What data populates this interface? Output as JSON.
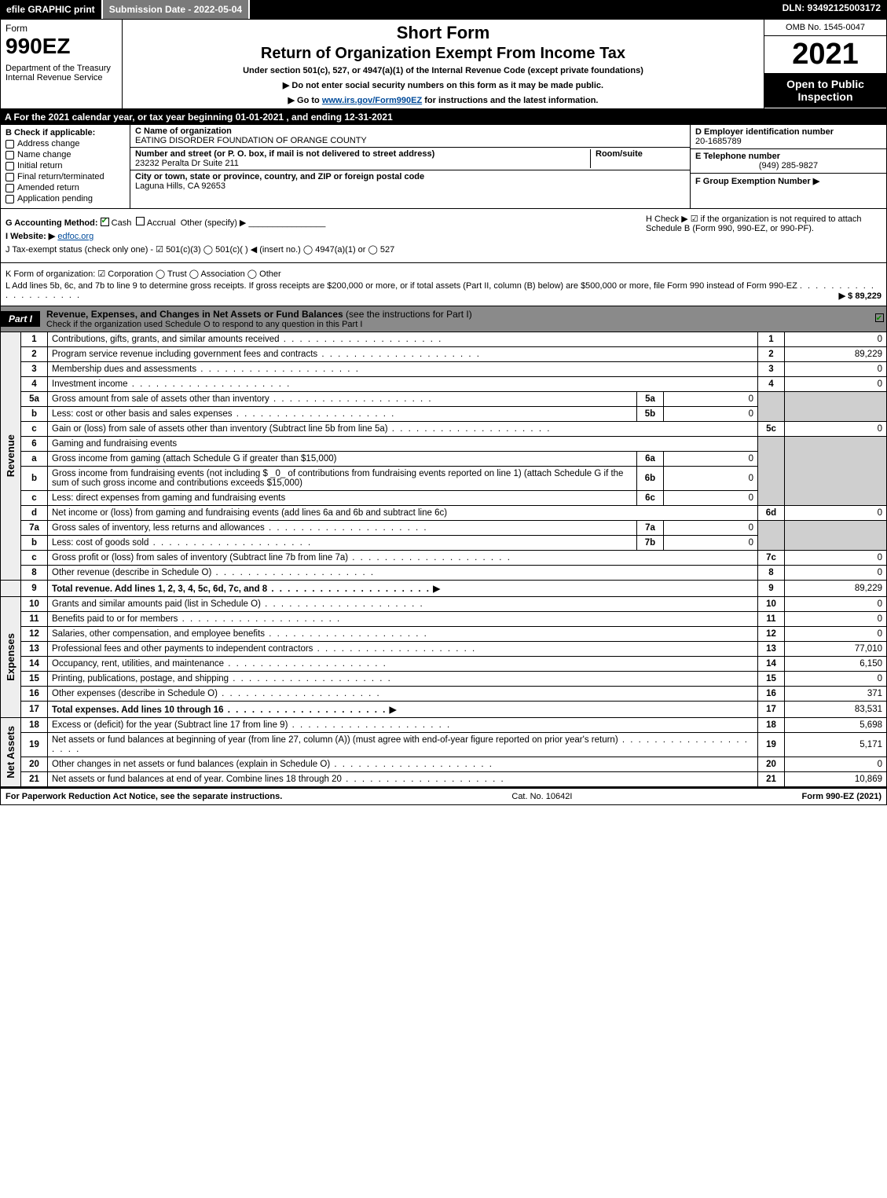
{
  "topbar": {
    "efile": "efile GRAPHIC print",
    "subdate_lbl": "Submission Date - 2022-05-04",
    "dln": "DLN: 93492125003172"
  },
  "header": {
    "form_word": "Form",
    "form_num": "990EZ",
    "dept": "Department of the Treasury\nInternal Revenue Service",
    "title1": "Short Form",
    "title2": "Return of Organization Exempt From Income Tax",
    "subtitle": "Under section 501(c), 527, or 4947(a)(1) of the Internal Revenue Code (except private foundations)",
    "instr1": "▶ Do not enter social security numbers on this form as it may be made public.",
    "instr2_pre": "▶ Go to ",
    "instr2_link": "www.irs.gov/Form990EZ",
    "instr2_post": " for instructions and the latest information.",
    "omb": "OMB No. 1545-0047",
    "year": "2021",
    "open": "Open to Public Inspection"
  },
  "section_a": "A  For the 2021 calendar year, or tax year beginning 01-01-2021 , and ending 12-31-2021",
  "section_b": {
    "header": "B  Check if applicable:",
    "items": [
      "Address change",
      "Name change",
      "Initial return",
      "Final return/terminated",
      "Amended return",
      "Application pending"
    ]
  },
  "section_c": {
    "name_lbl": "C Name of organization",
    "name_val": "EATING DISORDER FOUNDATION OF ORANGE COUNTY",
    "street_lbl": "Number and street (or P. O. box, if mail is not delivered to street address)",
    "street_val": "23232 Peralta Dr Suite 211",
    "suite_lbl": "Room/suite",
    "city_lbl": "City or town, state or province, country, and ZIP or foreign postal code",
    "city_val": "Laguna Hills, CA  92653"
  },
  "section_def": {
    "d_lbl": "D Employer identification number",
    "d_val": "20-1685789",
    "e_lbl": "E Telephone number",
    "e_val": "(949) 285-9827",
    "f_lbl": "F Group Exemption Number  ▶"
  },
  "section_g": {
    "lbl": "G Accounting Method:",
    "cash": "Cash",
    "accrual": "Accrual",
    "other": "Other (specify) ▶"
  },
  "section_h": "H  Check ▶ ☑ if the organization is not required to attach Schedule B (Form 990, 990-EZ, or 990-PF).",
  "section_i": {
    "lbl": "I Website: ▶",
    "val": "edfoc.org"
  },
  "section_j": "J Tax-exempt status (check only one) - ☑ 501(c)(3)  ◯ 501(c)( ) ◀ (insert no.)  ◯ 4947(a)(1) or  ◯ 527",
  "section_k": "K Form of organization:  ☑ Corporation  ◯ Trust  ◯ Association  ◯ Other",
  "section_l": {
    "text": "L Add lines 5b, 6c, and 7b to line 9 to determine gross receipts. If gross receipts are $200,000 or more, or if total assets (Part II, column (B) below) are $500,000 or more, file Form 990 instead of Form 990-EZ",
    "amount": "▶ $ 89,229"
  },
  "part1": {
    "tag": "Part I",
    "title": "Revenue, Expenses, and Changes in Net Assets or Fund Balances",
    "title_sub": "(see the instructions for Part I)",
    "checknote": "Check if the organization used Schedule O to respond to any question in this Part I"
  },
  "revenue_label": "Revenue",
  "expenses_label": "Expenses",
  "netassets_label": "Net Assets",
  "lines": {
    "l1": {
      "n": "1",
      "d": "Contributions, gifts, grants, and similar amounts received",
      "r": "1",
      "a": "0"
    },
    "l2": {
      "n": "2",
      "d": "Program service revenue including government fees and contracts",
      "r": "2",
      "a": "89,229"
    },
    "l3": {
      "n": "3",
      "d": "Membership dues and assessments",
      "r": "3",
      "a": "0"
    },
    "l4": {
      "n": "4",
      "d": "Investment income",
      "r": "4",
      "a": "0"
    },
    "l5a": {
      "n": "5a",
      "d": "Gross amount from sale of assets other than inventory",
      "il": "5a",
      "iv": "0"
    },
    "l5b": {
      "n": "b",
      "d": "Less: cost or other basis and sales expenses",
      "il": "5b",
      "iv": "0"
    },
    "l5c": {
      "n": "c",
      "d": "Gain or (loss) from sale of assets other than inventory (Subtract line 5b from line 5a)",
      "r": "5c",
      "a": "0"
    },
    "l6": {
      "n": "6",
      "d": "Gaming and fundraising events"
    },
    "l6a": {
      "n": "a",
      "d": "Gross income from gaming (attach Schedule G if greater than $15,000)",
      "il": "6a",
      "iv": "0"
    },
    "l6b": {
      "n": "b",
      "d": "Gross income from fundraising events (not including $ _0_ of contributions from fundraising events reported on line 1) (attach Schedule G if the sum of such gross income and contributions exceeds $15,000)",
      "il": "6b",
      "iv": "0"
    },
    "l6c": {
      "n": "c",
      "d": "Less: direct expenses from gaming and fundraising events",
      "il": "6c",
      "iv": "0"
    },
    "l6d": {
      "n": "d",
      "d": "Net income or (loss) from gaming and fundraising events (add lines 6a and 6b and subtract line 6c)",
      "r": "6d",
      "a": "0"
    },
    "l7a": {
      "n": "7a",
      "d": "Gross sales of inventory, less returns and allowances",
      "il": "7a",
      "iv": "0"
    },
    "l7b": {
      "n": "b",
      "d": "Less: cost of goods sold",
      "il": "7b",
      "iv": "0"
    },
    "l7c": {
      "n": "c",
      "d": "Gross profit or (loss) from sales of inventory (Subtract line 7b from line 7a)",
      "r": "7c",
      "a": "0"
    },
    "l8": {
      "n": "8",
      "d": "Other revenue (describe in Schedule O)",
      "r": "8",
      "a": "0"
    },
    "l9": {
      "n": "9",
      "d": "Total revenue. Add lines 1, 2, 3, 4, 5c, 6d, 7c, and 8",
      "r": "9",
      "a": "89,229"
    },
    "l10": {
      "n": "10",
      "d": "Grants and similar amounts paid (list in Schedule O)",
      "r": "10",
      "a": "0"
    },
    "l11": {
      "n": "11",
      "d": "Benefits paid to or for members",
      "r": "11",
      "a": "0"
    },
    "l12": {
      "n": "12",
      "d": "Salaries, other compensation, and employee benefits",
      "r": "12",
      "a": "0"
    },
    "l13": {
      "n": "13",
      "d": "Professional fees and other payments to independent contractors",
      "r": "13",
      "a": "77,010"
    },
    "l14": {
      "n": "14",
      "d": "Occupancy, rent, utilities, and maintenance",
      "r": "14",
      "a": "6,150"
    },
    "l15": {
      "n": "15",
      "d": "Printing, publications, postage, and shipping",
      "r": "15",
      "a": "0"
    },
    "l16": {
      "n": "16",
      "d": "Other expenses (describe in Schedule O)",
      "r": "16",
      "a": "371"
    },
    "l17": {
      "n": "17",
      "d": "Total expenses. Add lines 10 through 16",
      "r": "17",
      "a": "83,531"
    },
    "l18": {
      "n": "18",
      "d": "Excess or (deficit) for the year (Subtract line 17 from line 9)",
      "r": "18",
      "a": "5,698"
    },
    "l19": {
      "n": "19",
      "d": "Net assets or fund balances at beginning of year (from line 27, column (A)) (must agree with end-of-year figure reported on prior year's return)",
      "r": "19",
      "a": "5,171"
    },
    "l20": {
      "n": "20",
      "d": "Other changes in net assets or fund balances (explain in Schedule O)",
      "r": "20",
      "a": "0"
    },
    "l21": {
      "n": "21",
      "d": "Net assets or fund balances at end of year. Combine lines 18 through 20",
      "r": "21",
      "a": "10,869"
    }
  },
  "footer": {
    "left": "For Paperwork Reduction Act Notice, see the separate instructions.",
    "mid": "Cat. No. 10642I",
    "right": "Form 990-EZ (2021)"
  }
}
